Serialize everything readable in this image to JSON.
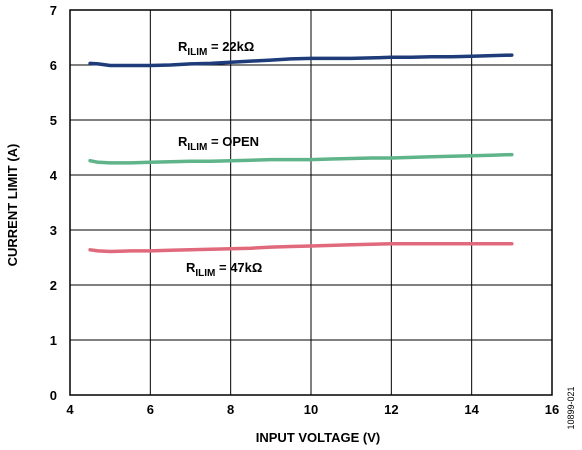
{
  "chart_data": {
    "type": "line",
    "xlabel": "INPUT VOLTAGE (V)",
    "ylabel": "CURRENT LIMIT (A)",
    "xlim": [
      4,
      16
    ],
    "ylim": [
      0,
      7
    ],
    "xticks": [
      4,
      6,
      8,
      10,
      12,
      14,
      16
    ],
    "yticks": [
      0,
      1,
      2,
      3,
      4,
      5,
      6,
      7
    ],
    "grid": true,
    "figure_id": "10899-021",
    "series": [
      {
        "color": "#1f3c7a",
        "label_main": "R",
        "label_sub": "ILIM",
        "label_rest": " = 22kΩ",
        "x": [
          4.5,
          4.7,
          5,
          5.5,
          6,
          6.5,
          7,
          7.5,
          8,
          8.5,
          9,
          9.5,
          10,
          10.5,
          11,
          11.5,
          12,
          12.5,
          13,
          13.5,
          14,
          14.5,
          15
        ],
        "y": [
          6.03,
          6.02,
          5.99,
          5.99,
          5.99,
          6.0,
          6.02,
          6.03,
          6.05,
          6.07,
          6.09,
          6.11,
          6.12,
          6.12,
          6.12,
          6.13,
          6.14,
          6.14,
          6.15,
          6.15,
          6.16,
          6.17,
          6.18
        ]
      },
      {
        "color": "#5fb48a",
        "label_main": "R",
        "label_sub": "ILIM",
        "label_rest": " = OPEN",
        "x": [
          4.5,
          4.7,
          5,
          5.5,
          6,
          6.5,
          7,
          7.5,
          8,
          8.5,
          9,
          9.5,
          10,
          10.5,
          11,
          11.5,
          12,
          12.5,
          13,
          13.5,
          14,
          14.5,
          15
        ],
        "y": [
          4.26,
          4.23,
          4.22,
          4.22,
          4.23,
          4.24,
          4.25,
          4.25,
          4.26,
          4.27,
          4.28,
          4.28,
          4.28,
          4.29,
          4.3,
          4.31,
          4.31,
          4.32,
          4.33,
          4.34,
          4.35,
          4.36,
          4.37
        ]
      },
      {
        "color": "#e06a7c",
        "label_main": "R",
        "label_sub": "ILIM",
        "label_rest": " = 47kΩ",
        "x": [
          4.5,
          4.7,
          5,
          5.5,
          6,
          6.5,
          7,
          7.5,
          8,
          8.5,
          9,
          9.5,
          10,
          10.5,
          11,
          11.5,
          12,
          12.5,
          13,
          13.5,
          14,
          14.5,
          15
        ],
        "y": [
          2.64,
          2.62,
          2.61,
          2.62,
          2.62,
          2.63,
          2.64,
          2.65,
          2.66,
          2.67,
          2.69,
          2.7,
          2.71,
          2.72,
          2.73,
          2.74,
          2.75,
          2.75,
          2.75,
          2.75,
          2.75,
          2.75,
          2.75
        ]
      }
    ]
  }
}
